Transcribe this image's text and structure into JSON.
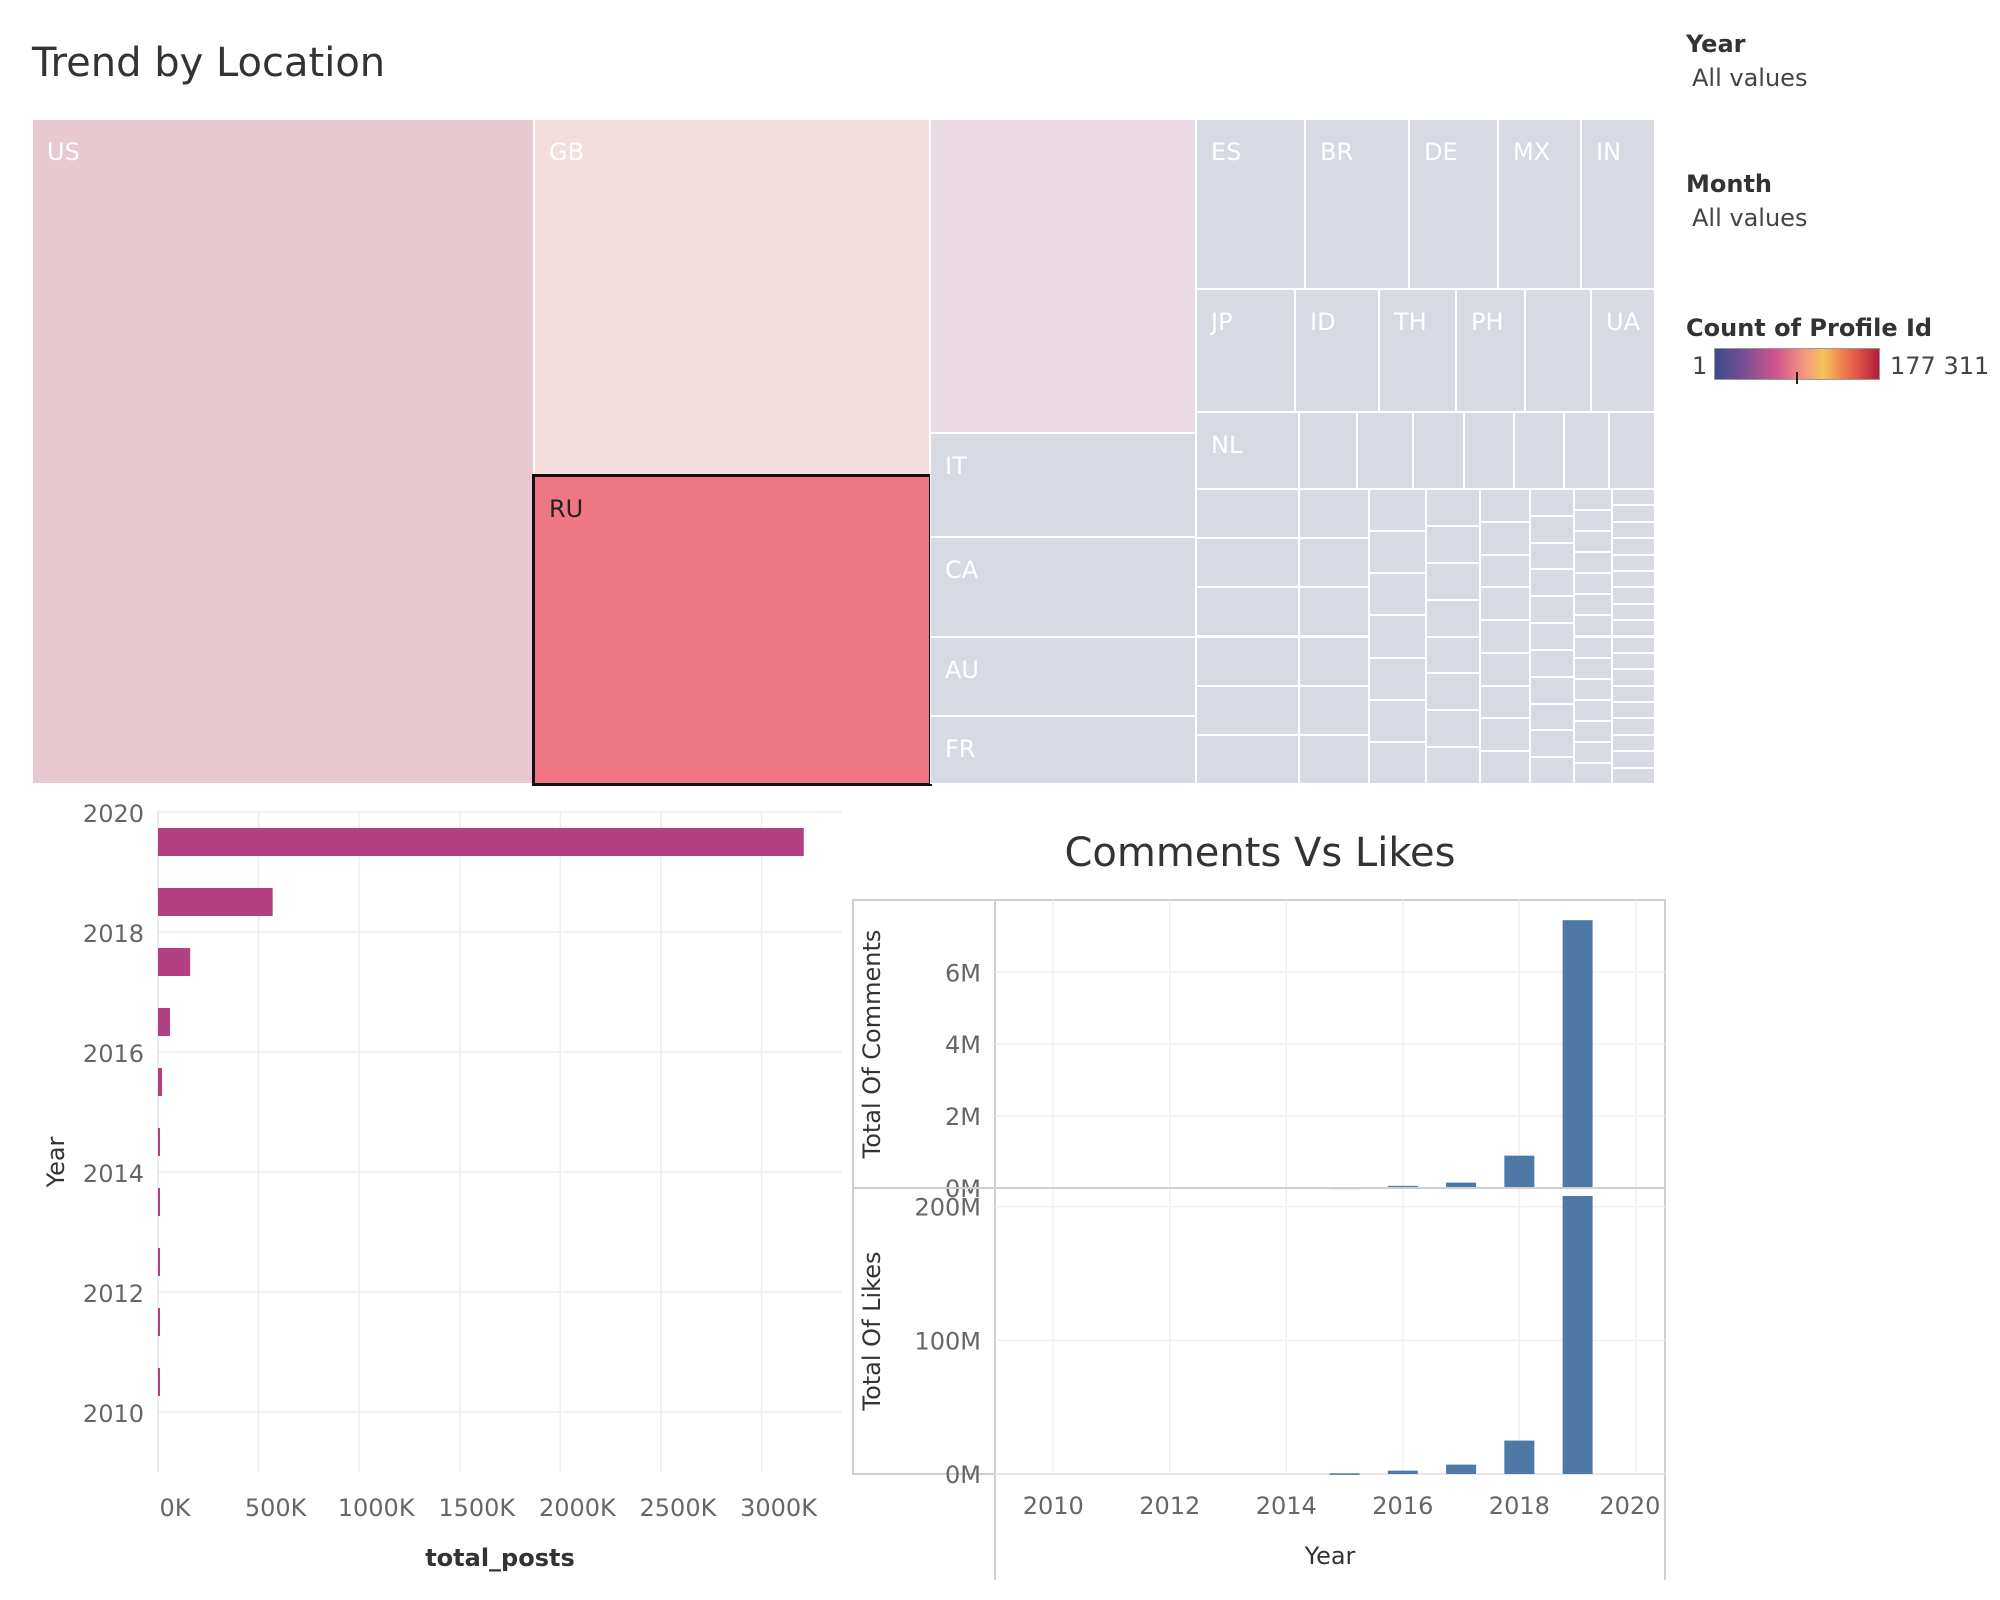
{
  "treemap": {
    "title": "Trend by Location",
    "cells": [
      {
        "label": "US",
        "color": "#e8c9d1"
      },
      {
        "label": "GB",
        "color": "#f4dedd"
      },
      {
        "label": "RU",
        "color": "#ef7783",
        "selected": true
      },
      {
        "label": "",
        "color": "#e9dae3"
      },
      {
        "label": "IT",
        "color": "#d7dae3"
      },
      {
        "label": "CA",
        "color": "#d7dae3"
      },
      {
        "label": "AU",
        "color": "#d7dae3"
      },
      {
        "label": "FR",
        "color": "#d7dae3"
      },
      {
        "label": "ES",
        "color": "#d7dae3"
      },
      {
        "label": "BR",
        "color": "#d7dae3"
      },
      {
        "label": "DE",
        "color": "#d7dae3"
      },
      {
        "label": "MX",
        "color": "#d7dae3"
      },
      {
        "label": "IN",
        "color": "#d7dae3"
      },
      {
        "label": "JP",
        "color": "#d7dae3"
      },
      {
        "label": "ID",
        "color": "#d7dae3"
      },
      {
        "label": "TH",
        "color": "#d7dae3"
      },
      {
        "label": "PH",
        "color": "#d7dae3"
      },
      {
        "label": "",
        "color": "#d7dae3"
      },
      {
        "label": "UA",
        "color": "#d7dae3"
      },
      {
        "label": "NL",
        "color": "#d7dae3"
      }
    ]
  },
  "filters": {
    "year": {
      "title": "Year",
      "value": "All values"
    },
    "month": {
      "title": "Month",
      "value": "All values"
    }
  },
  "legend": {
    "title": "Count of Profile Id",
    "min": "1",
    "max": "177 311"
  },
  "chart_data": [
    {
      "type": "bar",
      "orientation": "horizontal",
      "xlabel": "total_posts",
      "ylabel": "Year",
      "categories": [
        2010,
        2011,
        2012,
        2013,
        2014,
        2015,
        2016,
        2017,
        2018,
        2019
      ],
      "values": [
        3000,
        1500,
        2500,
        4000,
        8000,
        20000,
        60000,
        160000,
        570000,
        3210000
      ],
      "ylim": [
        2009,
        2020
      ],
      "xlim": [
        0,
        3400000
      ],
      "x_ticks": [
        "0K",
        "500K",
        "1000K",
        "1500K",
        "2000K",
        "2500K",
        "3000K"
      ],
      "y_ticks": [
        "2010",
        "2012",
        "2014",
        "2016",
        "2018",
        "2020"
      ],
      "color": "#b24083"
    },
    {
      "type": "bar",
      "title": "Comments Vs Likes",
      "xlabel": "Year",
      "x_ticks": [
        "2010",
        "2012",
        "2014",
        "2016",
        "2018",
        "2020"
      ],
      "categories": [
        2015,
        2016,
        2017,
        2018,
        2019
      ],
      "series": [
        {
          "name": "Total Of Comments",
          "values": [
            10000,
            60000,
            150000,
            900000,
            7450000
          ],
          "ticks": [
            "0M",
            "2M",
            "4M",
            "6M"
          ],
          "ylim": [
            0,
            7900000
          ]
        },
        {
          "name": "Total Of Likes",
          "values": [
            500000,
            2500000,
            7000000,
            25000000,
            208000000
          ],
          "ticks": [
            "0M",
            "100M",
            "200M"
          ],
          "ylim": [
            0,
            211000000
          ]
        }
      ],
      "color": "#4e79a7"
    }
  ]
}
